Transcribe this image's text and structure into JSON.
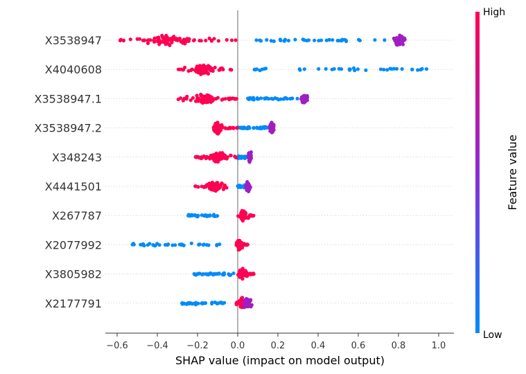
{
  "chart_data": {
    "type": "scatter",
    "subtype": "shap-beeswarm",
    "xlabel": "SHAP value (impact on model output)",
    "xlim": [
      -0.66,
      1.08
    ],
    "xticks": [
      -0.6,
      -0.4,
      -0.2,
      0.0,
      0.2,
      0.4,
      0.6,
      0.8,
      1.0
    ],
    "xtick_labels": [
      "−0.6",
      "−0.4",
      "−0.2",
      "0.0",
      "0.2",
      "0.4",
      "0.6",
      "0.8",
      "1.0"
    ],
    "features": [
      {
        "name": "X3538947",
        "high_range": [
          -0.6,
          0.0
        ],
        "high_center": -0.35,
        "low_range": [
          0.03,
          0.75
        ],
        "mid_center": 0.81,
        "mid_range": [
          0.76,
          0.86
        ]
      },
      {
        "name": "X4040608",
        "high_range": [
          -0.3,
          -0.03
        ],
        "high_center": -0.17,
        "low_range": [
          0.08,
          0.99
        ],
        "mid_center": null,
        "mid_range": null
      },
      {
        "name": "X3538947.1",
        "high_range": [
          -0.3,
          0.0
        ],
        "high_center": -0.17,
        "low_range": [
          0.05,
          0.3
        ],
        "mid_center": 0.33,
        "mid_range": [
          0.3,
          0.36
        ]
      },
      {
        "name": "X3538947.2",
        "high_range": [
          -0.12,
          0.0
        ],
        "high_center": -0.1,
        "low_range": [
          0.0,
          0.15
        ],
        "mid_center": 0.17,
        "mid_range": [
          0.15,
          0.19
        ]
      },
      {
        "name": "X348243",
        "high_range": [
          -0.22,
          0.0
        ],
        "high_center": -0.1,
        "low_range": [
          0.0,
          0.05
        ],
        "mid_center": 0.06,
        "mid_range": [
          0.04,
          0.07
        ]
      },
      {
        "name": "X4441501",
        "high_range": [
          -0.22,
          -0.05
        ],
        "high_center": -0.11,
        "low_range": [
          0.0,
          0.05
        ],
        "mid_center": 0.05,
        "mid_range": [
          0.02,
          0.07
        ]
      },
      {
        "name": "X267787",
        "high_range": [
          0.0,
          0.08
        ],
        "high_center": 0.03,
        "low_range": [
          -0.25,
          -0.1
        ],
        "mid_center": null,
        "mid_range": null
      },
      {
        "name": "X2077992",
        "high_range": [
          -0.02,
          0.05
        ],
        "high_center": 0.01,
        "low_range": [
          -0.55,
          -0.08
        ],
        "mid_center": null,
        "mid_range": null
      },
      {
        "name": "X3805982",
        "high_range": [
          0.0,
          0.08
        ],
        "high_center": 0.02,
        "low_range": [
          -0.22,
          -0.02
        ],
        "mid_center": null,
        "mid_range": null
      },
      {
        "name": "X2177791",
        "high_range": [
          -0.01,
          0.06
        ],
        "high_center": 0.02,
        "low_range": [
          -0.28,
          -0.05
        ],
        "mid_center": 0.05,
        "mid_range": [
          0.03,
          0.1
        ]
      }
    ],
    "colorbar": {
      "title": "Feature value",
      "high_label": "High",
      "low_label": "Low",
      "high_color": "#ff0052",
      "mid_color": "#a11ec0",
      "low_color": "#008bfb"
    }
  }
}
